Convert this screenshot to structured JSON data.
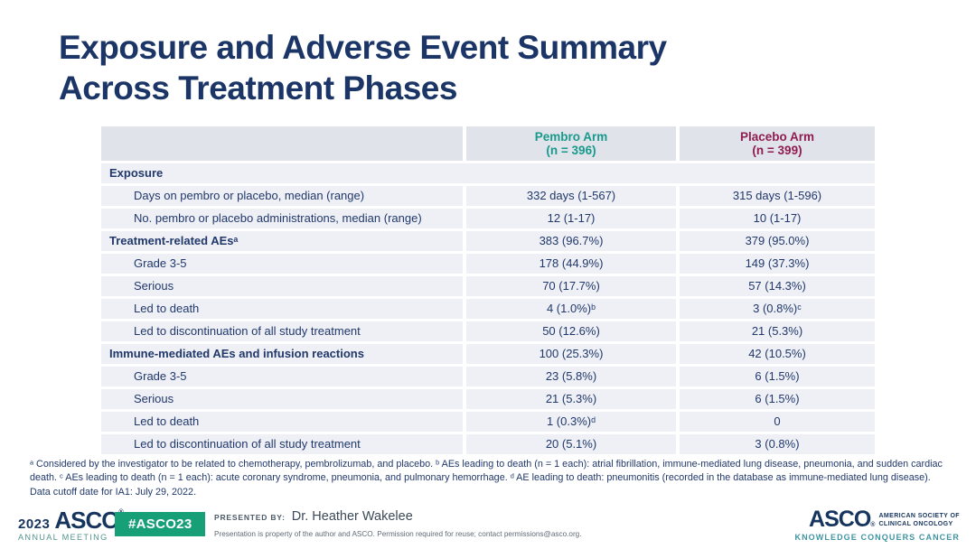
{
  "title_lines": [
    "Exposure and Adverse Event Summary",
    "Across Treatment Phases"
  ],
  "colors": {
    "title_navy": "#1c3567",
    "table_text_navy": "#21386b",
    "pembro_teal": "#189a8b",
    "placebo_maroon": "#8f1d4f",
    "row_bg": "#eef0f5",
    "header_bg": "#e1e3eb",
    "hashtag_green": "#17a077",
    "tagline_teal": "#3f94a1"
  },
  "table": {
    "header": {
      "pembro_name": "Pembro Arm",
      "pembro_n": "(n = 396)",
      "placebo_name": "Placebo Arm",
      "placebo_n": "(n = 399)"
    },
    "rows": [
      {
        "type": "section",
        "label": "Exposure",
        "pembro": "",
        "placebo": ""
      },
      {
        "type": "data",
        "label": "Days on pembro or placebo, median (range)",
        "pembro": "332 days (1-567)",
        "placebo": "315 days (1-596)"
      },
      {
        "type": "data",
        "label": "No. pembro or placebo administrations, median (range)",
        "pembro": "12 (1-17)",
        "placebo": "10 (1-17)"
      },
      {
        "type": "section-data",
        "label": "Treatment-related AEsᵃ",
        "pembro": "383 (96.7%)",
        "placebo": "379 (95.0%)"
      },
      {
        "type": "data",
        "label": "Grade 3-5",
        "pembro": "178 (44.9%)",
        "placebo": "149 (37.3%)"
      },
      {
        "type": "data",
        "label": "Serious",
        "pembro": "70 (17.7%)",
        "placebo": "57 (14.3%)"
      },
      {
        "type": "data",
        "label": "Led to death",
        "pembro": "4 (1.0%)ᵇ",
        "placebo": "3 (0.8%)ᶜ"
      },
      {
        "type": "data",
        "label": "Led to discontinuation of all study treatment",
        "pembro": "50 (12.6%)",
        "placebo": "21 (5.3%)"
      },
      {
        "type": "section-data",
        "label": "Immune-mediated AEs and infusion reactions",
        "pembro": "100 (25.3%)",
        "placebo": "42 (10.5%)"
      },
      {
        "type": "data",
        "label": "Grade 3-5",
        "pembro": "23 (5.8%)",
        "placebo": "6 (1.5%)"
      },
      {
        "type": "data",
        "label": "Serious",
        "pembro": "21 (5.3%)",
        "placebo": "6 (1.5%)"
      },
      {
        "type": "data",
        "label": "Led to death",
        "pembro": "1 (0.3%)ᵈ",
        "placebo": "0"
      },
      {
        "type": "data",
        "label": "Led to discontinuation of all study treatment",
        "pembro": "20 (5.1%)",
        "placebo": "3 (0.8%)"
      }
    ]
  },
  "footnote": "ᵃ Considered by the investigator to be related to chemotherapy, pembrolizumab, and placebo. ᵇ AEs leading to death (n = 1 each): atrial fibrillation, immune-mediated lung disease, pneumonia, and sudden cardiac death. ᶜ AEs leading to death (n = 1 each): acute coronary syndrome, pneumonia, and pulmonary hemorrhage. ᵈ AE leading to death: pneumonitis (recorded in the database as immune-mediated lung disease). Data cutoff date for IA1: July 29, 2022.",
  "footer": {
    "year": "2023",
    "asco": "ASCO",
    "reg_mark": "®",
    "annual_meeting": "ANNUAL MEETING",
    "hashtag": "#ASCO23",
    "presented_by_label": "PRESENTED BY:",
    "presenter": "Dr. Heather Wakelee",
    "disclaimer": "Presentation is property of the author and ASCO. Permission required for reuse; contact permissions@asco.org.",
    "right_logo": {
      "asco": "ASCO",
      "reg_mark": "®",
      "society_line1": "AMERICAN SOCIETY OF",
      "society_line2": "CLINICAL ONCOLOGY",
      "tagline": "KNOWLEDGE CONQUERS CANCER"
    }
  }
}
